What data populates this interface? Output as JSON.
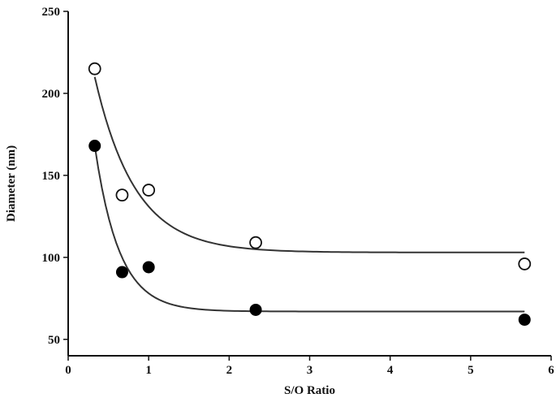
{
  "chart_data": {
    "type": "scatter",
    "title": "",
    "xlabel": "S/O Ratio",
    "ylabel": "Diameter (nm)",
    "xlim": [
      0,
      6
    ],
    "ylim": [
      40,
      250
    ],
    "xticks": [
      0,
      1,
      2,
      3,
      4,
      5,
      6
    ],
    "yticks": [
      50,
      100,
      150,
      200,
      250
    ],
    "grid": false,
    "legend": "none",
    "series": [
      {
        "marker": "open-circle",
        "color": "#111111",
        "x": [
          0.33,
          0.67,
          1.0,
          2.33,
          5.67
        ],
        "y": [
          215,
          138,
          141,
          109,
          96
        ],
        "fit": {
          "model": "exponential-decay",
          "plateau": 103,
          "amplitude": 107,
          "rate": 2.0,
          "x0": 0.33,
          "x_end": 5.67
        }
      },
      {
        "marker": "filled-circle",
        "color": "#000000",
        "x": [
          0.33,
          0.67,
          1.0,
          2.33,
          5.67
        ],
        "y": [
          168,
          91,
          94,
          68,
          62
        ],
        "fit": {
          "model": "exponential-decay",
          "plateau": 67,
          "amplitude": 101,
          "rate": 3.3,
          "x0": 0.33,
          "x_end": 5.67
        }
      }
    ]
  }
}
